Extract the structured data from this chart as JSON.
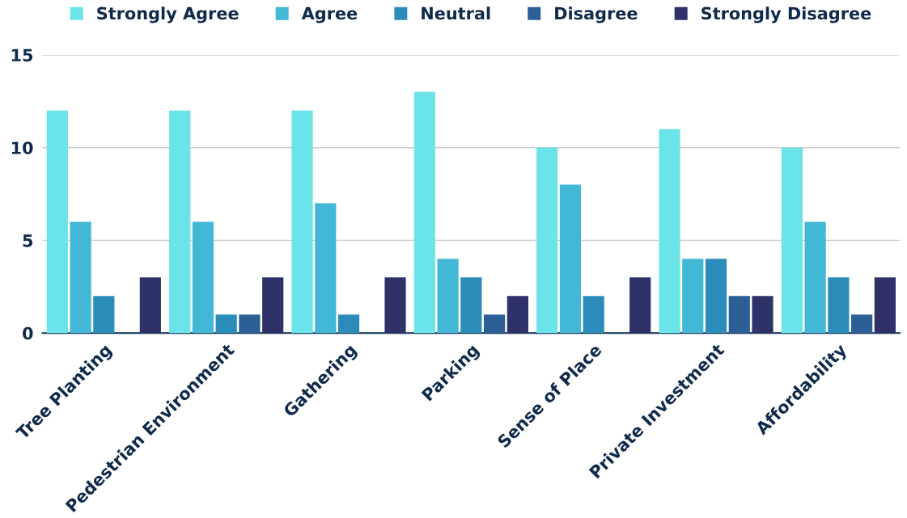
{
  "chart_data": {
    "type": "bar",
    "categories": [
      "Tree Planting",
      "Pedestrian Environment",
      "Gathering",
      "Parking",
      "Sense of Place",
      "Private Investment",
      "Affordability"
    ],
    "series": [
      {
        "name": "Strongly Agree",
        "color": "#6ae4e8",
        "values": [
          12,
          12,
          12,
          13,
          10,
          11,
          10
        ]
      },
      {
        "name": "Agree",
        "color": "#42b7d6",
        "values": [
          6,
          6,
          7,
          4,
          8,
          4,
          6
        ]
      },
      {
        "name": "Neutral",
        "color": "#2b8cba",
        "values": [
          2,
          1,
          1,
          3,
          2,
          4,
          3
        ]
      },
      {
        "name": "Disagree",
        "color": "#2c5f96",
        "values": [
          0,
          1,
          0,
          1,
          0,
          2,
          1
        ]
      },
      {
        "name": "Strongly Disagree",
        "color": "#2e3269",
        "values": [
          3,
          3,
          3,
          2,
          3,
          2,
          3
        ]
      }
    ],
    "ylim": [
      0,
      15
    ],
    "yticks": [
      0,
      5,
      10,
      15
    ],
    "grid": "y",
    "legend": "top"
  }
}
